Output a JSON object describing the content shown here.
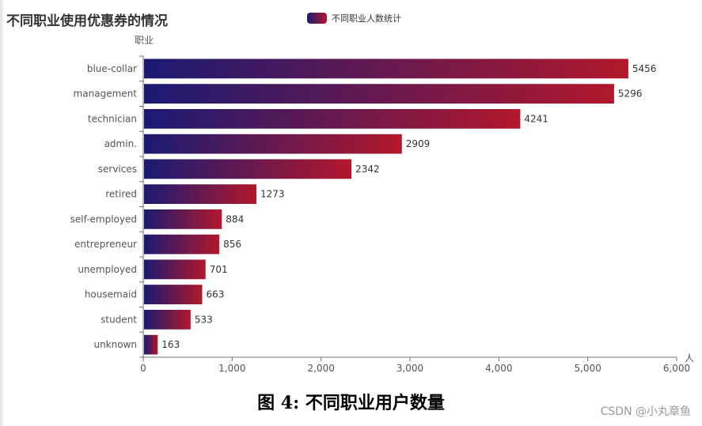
{
  "chart_data": {
    "type": "bar",
    "orientation": "horizontal",
    "title": "不同职业使用优惠券的情况",
    "ylabel": "职业",
    "xlabel": "人",
    "categories": [
      "blue-collar",
      "management",
      "technician",
      "admin.",
      "services",
      "retired",
      "self-employed",
      "entrepreneur",
      "unemployed",
      "housemaid",
      "student",
      "unknown"
    ],
    "series": [
      {
        "name": "不同职业人数统计",
        "values": [
          5456,
          5296,
          4241,
          2909,
          2342,
          1273,
          884,
          856,
          701,
          663,
          533,
          163
        ]
      }
    ],
    "xlim": [
      0,
      6000
    ],
    "x_ticks": [
      0,
      1000,
      2000,
      3000,
      4000,
      5000,
      6000
    ],
    "x_tick_labels": [
      "0",
      "1,000",
      "2,000",
      "3,000",
      "4,000",
      "5,000",
      "6,000"
    ],
    "legend_position": "top-center",
    "grid": false,
    "bar_gradient": [
      "#1a1a72",
      "#b2182b"
    ]
  },
  "caption": "图 4: 不同职业用户数量",
  "watermark": "CSDN @小丸章鱼"
}
